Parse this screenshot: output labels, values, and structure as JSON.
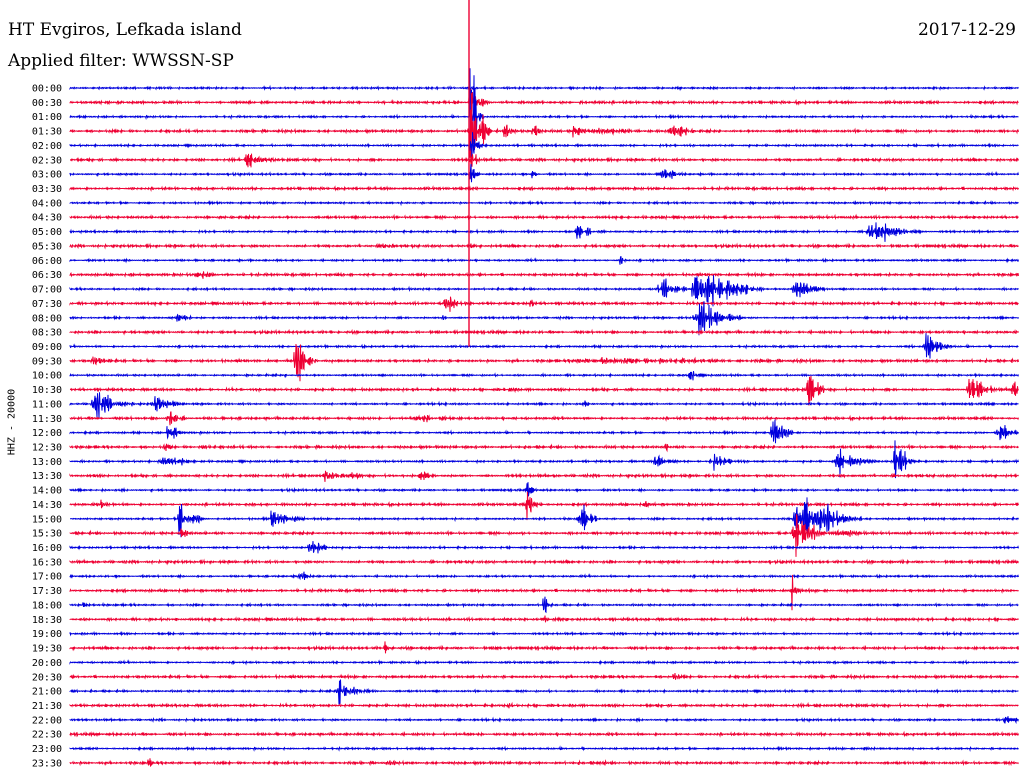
{
  "title": "HT Evgiros, Lefkada island",
  "date": "2017-12-29",
  "filter_label": "Applied filter: WWSSN-SP",
  "channel_label": "HHZ - 20000",
  "colors": {
    "blue": "#0000dd",
    "red": "#ee0033",
    "text": "#000000"
  },
  "chart_data": {
    "type": "line",
    "title": "HT Evgiros, Lefkada island",
    "xlabel": "",
    "ylabel": "HHZ - 20000",
    "y_tick_labels": [
      "00:00",
      "00:30",
      "01:00",
      "01:30",
      "02:00",
      "02:30",
      "03:00",
      "03:30",
      "04:00",
      "04:30",
      "05:00",
      "05:30",
      "06:00",
      "06:30",
      "07:00",
      "07:30",
      "08:00",
      "08:30",
      "09:00",
      "09:30",
      "10:00",
      "10:30",
      "11:00",
      "11:30",
      "12:00",
      "12:30",
      "13:00",
      "13:30",
      "14:00",
      "14:30",
      "15:00",
      "15:30",
      "16:00",
      "16:30",
      "17:00",
      "17:30",
      "18:00",
      "18:30",
      "19:00",
      "19:30",
      "20:00",
      "20:30",
      "21:00",
      "21:30",
      "22:00",
      "22:30",
      "23:00",
      "23:30"
    ],
    "trace_colors_alternate": [
      "#0000dd",
      "#ee0033"
    ],
    "minutes_per_row": 30,
    "grid": false
  }
}
